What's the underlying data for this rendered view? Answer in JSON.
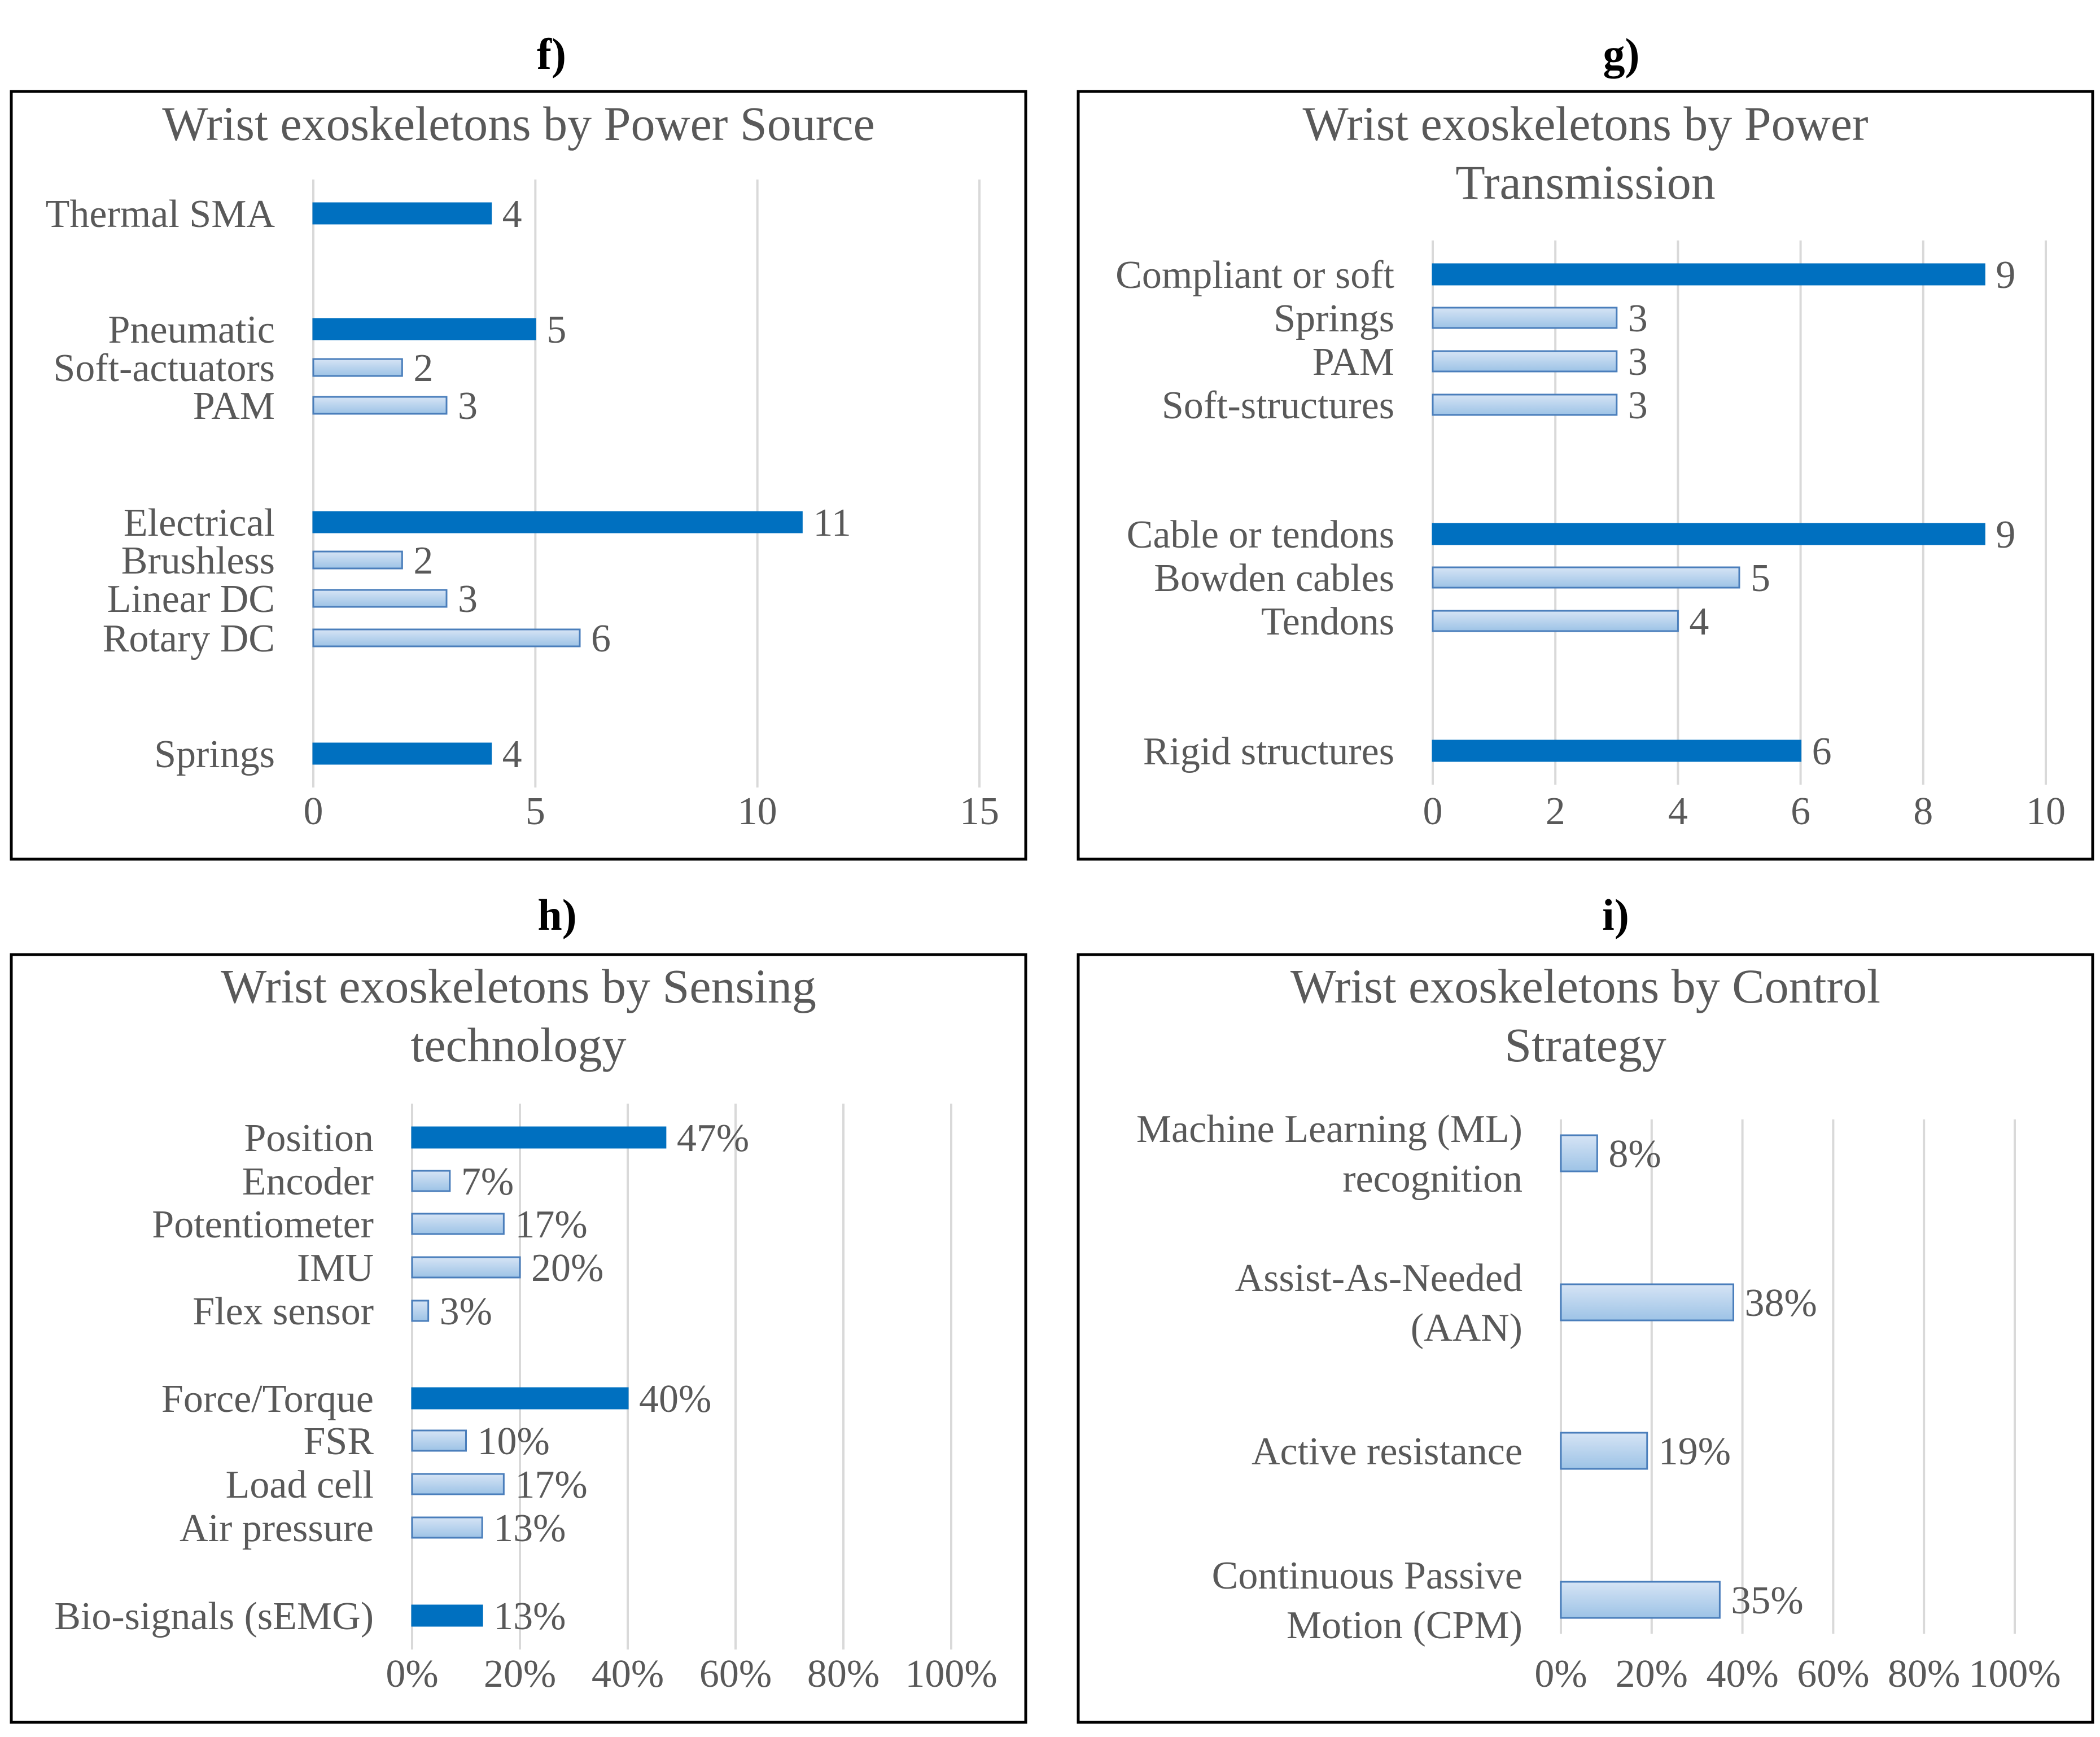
{
  "colors": {
    "primary": "#0070c0",
    "sub_fill_top": "#d6e4f5",
    "sub_fill_bottom": "#9dc3e6",
    "sub_stroke": "#4a7ebb",
    "grid": "#d9d9d9",
    "text": "#595959"
  },
  "chart_data": [
    {
      "panel": "f)",
      "type": "bar",
      "title": [
        "Wrist exoskeletons by Power Source"
      ],
      "xlim": [
        0,
        15
      ],
      "ticks": [
        0,
        5,
        10,
        15
      ],
      "tick_labels": [
        "0",
        "5",
        "10",
        "15"
      ],
      "bars": [
        {
          "label": [
            "Thermal SMA"
          ],
          "value": 4,
          "value_label": "4",
          "group_header": true
        },
        {
          "label": [
            "Pneumatic"
          ],
          "value": 5,
          "value_label": "5",
          "group_header": true
        },
        {
          "label": [
            "Soft-actuators"
          ],
          "value": 2,
          "value_label": "2",
          "group_header": false
        },
        {
          "label": [
            "PAM"
          ],
          "value": 3,
          "value_label": "3",
          "group_header": false
        },
        {
          "label": [
            "Electrical"
          ],
          "value": 11,
          "value_label": "11",
          "group_header": true
        },
        {
          "label": [
            "Brushless"
          ],
          "value": 2,
          "value_label": "2",
          "group_header": false
        },
        {
          "label": [
            "Linear DC"
          ],
          "value": 3,
          "value_label": "3",
          "group_header": false
        },
        {
          "label": [
            "Rotary DC"
          ],
          "value": 6,
          "value_label": "6",
          "group_header": false
        },
        {
          "label": [
            "Springs"
          ],
          "value": 4,
          "value_label": "4",
          "group_header": true
        }
      ]
    },
    {
      "panel": "g)",
      "type": "bar",
      "title": [
        "Wrist exoskeletons by Power",
        "Transmission"
      ],
      "xlim": [
        0,
        10
      ],
      "ticks": [
        0,
        2,
        4,
        6,
        8,
        10
      ],
      "tick_labels": [
        "0",
        "2",
        "4",
        "6",
        "8",
        "10"
      ],
      "bars": [
        {
          "label": [
            "Compliant or soft"
          ],
          "value": 9,
          "value_label": "9",
          "group_header": true
        },
        {
          "label": [
            "Springs"
          ],
          "value": 3,
          "value_label": "3",
          "group_header": false
        },
        {
          "label": [
            "PAM"
          ],
          "value": 3,
          "value_label": "3",
          "group_header": false
        },
        {
          "label": [
            "Soft-structures"
          ],
          "value": 3,
          "value_label": "3",
          "group_header": false
        },
        {
          "label": [
            "Cable or tendons"
          ],
          "value": 9,
          "value_label": "9",
          "group_header": true
        },
        {
          "label": [
            "Bowden cables"
          ],
          "value": 5,
          "value_label": "5",
          "group_header": false
        },
        {
          "label": [
            "Tendons"
          ],
          "value": 4,
          "value_label": "4",
          "group_header": false
        },
        {
          "label": [
            "Rigid structures"
          ],
          "value": 6,
          "value_label": "6",
          "group_header": true
        }
      ]
    },
    {
      "panel": "h)",
      "type": "bar",
      "title": [
        "Wrist exoskeletons by Sensing",
        "technology"
      ],
      "xlim": [
        0,
        100
      ],
      "ticks": [
        0,
        20,
        40,
        60,
        80,
        100
      ],
      "tick_labels": [
        "0%",
        "20%",
        "40%",
        "60%",
        "80%",
        "100%"
      ],
      "bars": [
        {
          "label": [
            "Position"
          ],
          "value": 47,
          "value_label": "47%",
          "group_header": true
        },
        {
          "label": [
            "Encoder"
          ],
          "value": 7,
          "value_label": "7%",
          "group_header": false
        },
        {
          "label": [
            "Potentiometer"
          ],
          "value": 17,
          "value_label": "17%",
          "group_header": false
        },
        {
          "label": [
            "IMU"
          ],
          "value": 20,
          "value_label": "20%",
          "group_header": false
        },
        {
          "label": [
            "Flex sensor"
          ],
          "value": 3,
          "value_label": "3%",
          "group_header": false
        },
        {
          "label": [
            "Force/Torque"
          ],
          "value": 40,
          "value_label": "40%",
          "group_header": true
        },
        {
          "label": [
            "FSR"
          ],
          "value": 10,
          "value_label": "10%",
          "group_header": false
        },
        {
          "label": [
            "Load cell"
          ],
          "value": 17,
          "value_label": "17%",
          "group_header": false
        },
        {
          "label": [
            "Air pressure"
          ],
          "value": 13,
          "value_label": "13%",
          "group_header": false
        },
        {
          "label": [
            "Bio-signals (sEMG)"
          ],
          "value": 13,
          "value_label": "13%",
          "group_header": true
        }
      ]
    },
    {
      "panel": "i)",
      "type": "bar",
      "title": [
        "Wrist exoskeletons by Control",
        "Strategy"
      ],
      "xlim": [
        0,
        100
      ],
      "ticks": [
        0,
        20,
        40,
        60,
        80,
        100
      ],
      "tick_labels": [
        "0%",
        "20%",
        "40%",
        "60%",
        "80%",
        "100%"
      ],
      "bars": [
        {
          "label": [
            "Machine Learning  (ML)",
            "recognition"
          ],
          "value": 8,
          "value_label": "8%",
          "group_header": false
        },
        {
          "label": [
            "Assist-As-Needed",
            "(AAN)"
          ],
          "value": 38,
          "value_label": "38%",
          "group_header": false
        },
        {
          "label": [
            "Active resistance"
          ],
          "value": 19,
          "value_label": "19%",
          "group_header": false
        },
        {
          "label": [
            "Continuous Passive",
            "Motion (CPM)"
          ],
          "value": 35,
          "value_label": "35%",
          "group_header": false
        }
      ]
    }
  ]
}
